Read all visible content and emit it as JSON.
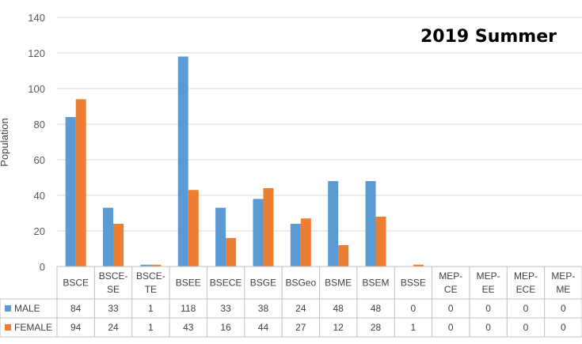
{
  "chart_data": {
    "type": "bar",
    "title": "2019 Summer",
    "ylabel": "Population",
    "xlabel": "",
    "ylim": [
      0,
      140
    ],
    "yticks": [
      0,
      20,
      40,
      60,
      80,
      100,
      120,
      140
    ],
    "grid": true,
    "legend": "data-table",
    "categories": [
      [
        "BSCE"
      ],
      [
        "BSCE-",
        "SE"
      ],
      [
        "BSCE-",
        "TE"
      ],
      [
        "BSEE"
      ],
      [
        "BSECE"
      ],
      [
        "BSGE"
      ],
      [
        "BSGeo"
      ],
      [
        "BSME"
      ],
      [
        "BSEM"
      ],
      [
        "BSSE"
      ],
      [
        "MEP-",
        "CE"
      ],
      [
        "MEP-",
        "EE"
      ],
      [
        "MEP-",
        "ECE"
      ],
      [
        "MEP-",
        "ME"
      ]
    ],
    "series": [
      {
        "name": "MALE",
        "color": "#5B9BD5",
        "values": [
          84,
          33,
          1,
          118,
          33,
          38,
          24,
          48,
          48,
          0,
          0,
          0,
          0,
          0
        ]
      },
      {
        "name": "FEMALE",
        "color": "#ED7D31",
        "values": [
          94,
          24,
          1,
          43,
          16,
          44,
          27,
          12,
          28,
          1,
          0,
          0,
          0,
          0
        ]
      }
    ]
  }
}
